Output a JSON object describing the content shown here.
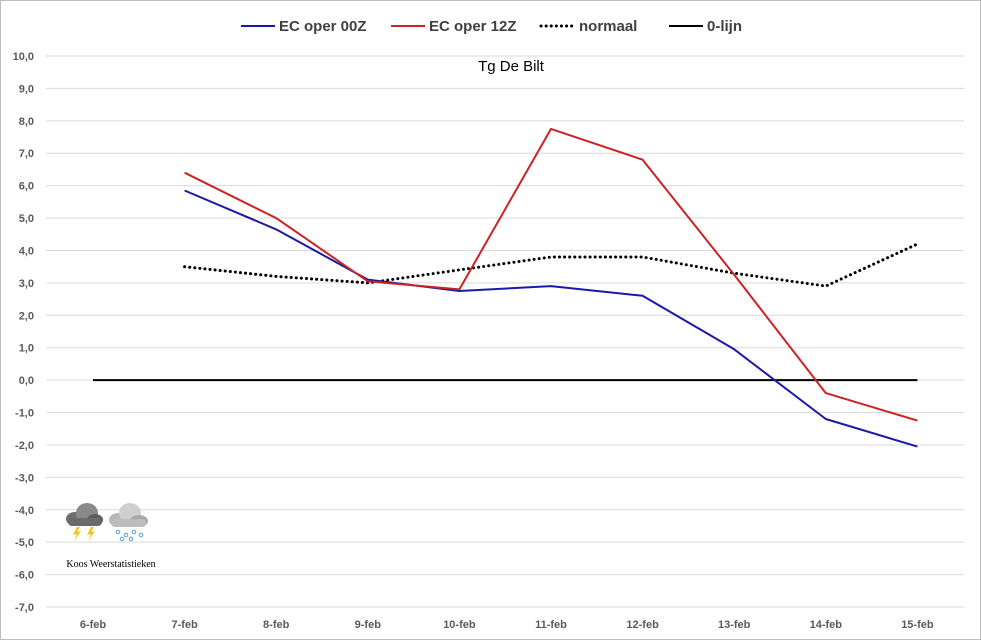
{
  "chart_data": {
    "type": "line",
    "title": "Tg De Bilt",
    "xlabel": "",
    "ylabel": "",
    "categories": [
      "6-feb",
      "7-feb",
      "8-feb",
      "9-feb",
      "10-feb",
      "11-feb",
      "12-feb",
      "13-feb",
      "14-feb",
      "15-feb"
    ],
    "ylim": [
      -7,
      10
    ],
    "yticks": [
      "10,0",
      "9,0",
      "8,0",
      "7,0",
      "6,0",
      "5,0",
      "4,0",
      "3,0",
      "2,0",
      "1,0",
      "0,0",
      "-1,0",
      "-2,0",
      "-3,0",
      "-4,0",
      "-5,0",
      "-6,0",
      "-7,0"
    ],
    "grid": true,
    "legend_position": "top",
    "series": [
      {
        "name": "EC oper 00Z",
        "color": "#1a1aa6",
        "style": "solid",
        "values": [
          null,
          5.85,
          4.65,
          3.1,
          2.75,
          2.9,
          2.6,
          0.95,
          -1.2,
          -2.05
        ]
      },
      {
        "name": "EC oper 12Z",
        "color": "#cc2222",
        "style": "solid",
        "values": [
          null,
          6.4,
          5.0,
          3.05,
          2.8,
          7.75,
          6.8,
          3.25,
          -0.4,
          -1.25
        ]
      },
      {
        "name": "normaal",
        "color": "#000000",
        "style": "dotted",
        "values": [
          null,
          3.5,
          3.2,
          3.0,
          3.4,
          3.8,
          3.8,
          3.3,
          2.9,
          4.2
        ]
      },
      {
        "name": "0-lijn",
        "color": "#000000",
        "style": "solid",
        "values": [
          0,
          0,
          0,
          0,
          0,
          0,
          0,
          0,
          0,
          0
        ]
      }
    ]
  },
  "watermark": {
    "text": "Koos Weerstatistieken",
    "icons": [
      "thunderstorm-cloud-icon",
      "snow-cloud-icon"
    ]
  }
}
